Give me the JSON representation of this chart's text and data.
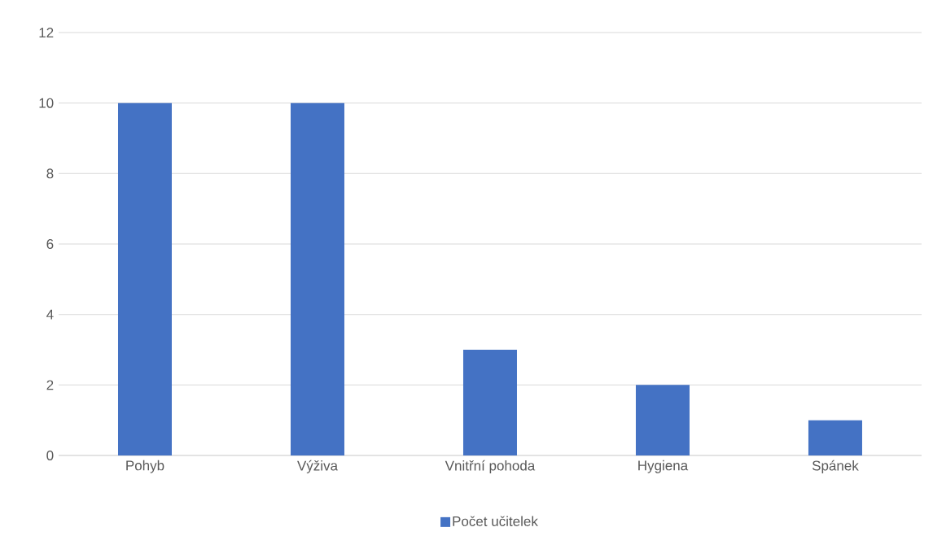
{
  "chart_data": {
    "type": "bar",
    "categories": [
      "Pohyb",
      "Výživa",
      "Vnitřní pohoda",
      "Hygiena",
      "Spánek"
    ],
    "series": [
      {
        "name": "Počet učitelek",
        "color": "#4472c4",
        "values": [
          10,
          10,
          3,
          2,
          1
        ]
      }
    ],
    "ylim": [
      0,
      12
    ],
    "yticks": [
      0,
      2,
      4,
      6,
      8,
      10,
      12
    ],
    "grid": "y",
    "legend": "bottom"
  }
}
